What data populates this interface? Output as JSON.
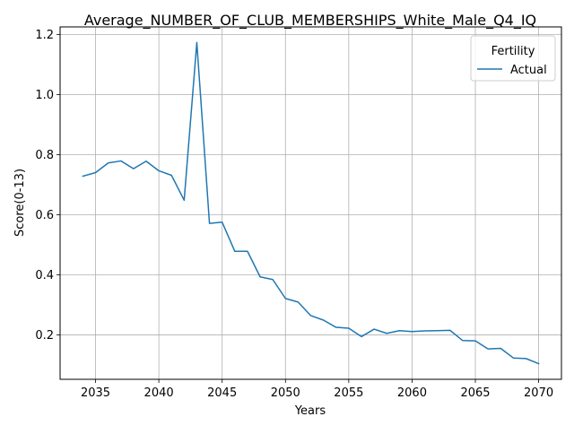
{
  "chart_data": {
    "type": "line",
    "title": "Average_NUMBER_OF_CLUB_MEMBERSHIPS_White_Male_Q4_IQ",
    "xlabel": "Years",
    "ylabel": "Score(0-13)",
    "xlim": [
      2032.2,
      2071.8
    ],
    "ylim": [
      0.052,
      1.225
    ],
    "x_ticks": [
      2035,
      2040,
      2045,
      2050,
      2055,
      2060,
      2065,
      2070
    ],
    "y_ticks": [
      0.2,
      0.4,
      0.6,
      0.8,
      1.0,
      1.2
    ],
    "x_tick_labels": [
      "2035",
      "2040",
      "2045",
      "2050",
      "2055",
      "2060",
      "2065",
      "2070"
    ],
    "y_tick_labels": [
      "0.2",
      "0.4",
      "0.6",
      "0.8",
      "1.0",
      "1.2"
    ],
    "grid": true,
    "legend": {
      "title": "Fertility",
      "position": "top-right"
    },
    "series": [
      {
        "name": "Actual",
        "color": "#1f77b4",
        "x": [
          2034,
          2035,
          2036,
          2037,
          2038,
          2039,
          2040,
          2041,
          2042,
          2043,
          2044,
          2045,
          2046,
          2047,
          2048,
          2049,
          2050,
          2051,
          2052,
          2053,
          2054,
          2055,
          2056,
          2057,
          2058,
          2059,
          2060,
          2061,
          2062,
          2063,
          2064,
          2065,
          2066,
          2067,
          2068,
          2069,
          2070
        ],
        "y": [
          0.728,
          0.74,
          0.772,
          0.779,
          0.753,
          0.778,
          0.746,
          0.731,
          0.648,
          1.173,
          0.571,
          0.575,
          0.478,
          0.478,
          0.393,
          0.384,
          0.321,
          0.309,
          0.264,
          0.249,
          0.225,
          0.222,
          0.194,
          0.219,
          0.205,
          0.214,
          0.211,
          0.213,
          0.214,
          0.215,
          0.181,
          0.18,
          0.153,
          0.155,
          0.123,
          0.121,
          0.104
        ]
      }
    ]
  }
}
